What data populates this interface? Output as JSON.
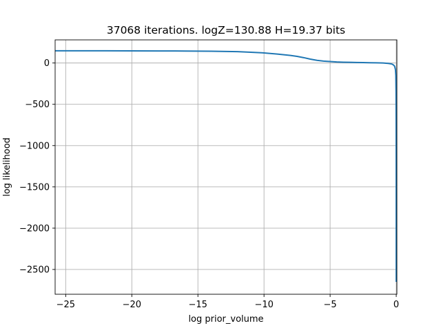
{
  "chart_data": {
    "type": "line",
    "title": "37068 iterations. logZ=130.88 H=19.37 bits",
    "xlabel": "log prior_volume",
    "ylabel": "log likelihood",
    "xlim": [
      -25.8,
      0.05
    ],
    "ylim": [
      -2800,
      280
    ],
    "grid": true,
    "xticks": [
      -25,
      -20,
      -15,
      -10,
      -5,
      0
    ],
    "xtick_labels": [
      "−25",
      "−20",
      "−15",
      "−10",
      "−5",
      "0"
    ],
    "yticks": [
      0,
      -500,
      -1000,
      -1500,
      -2000,
      -2500
    ],
    "ytick_labels": [
      "0",
      "−500",
      "−1000",
      "−1500",
      "−2000",
      "−2500"
    ],
    "series": [
      {
        "color": "#1f77b4",
        "x": [
          -25.8,
          -22,
          -20,
          -18,
          -16,
          -14,
          -12,
          -11,
          -10,
          -9,
          -8,
          -7.5,
          -7,
          -6.5,
          -6,
          -5.5,
          -5,
          -4.5,
          -4,
          -3.5,
          -3,
          -2.5,
          -2,
          -1.5,
          -1,
          -0.6,
          -0.4,
          -0.3,
          -0.2,
          -0.12,
          -0.06,
          -0.03,
          -0.015,
          -0.008,
          -0.003,
          -0.001,
          0
        ],
        "y": [
          148,
          148,
          147,
          146,
          145,
          143,
          137,
          130,
          122,
          108,
          92,
          80,
          65,
          47,
          32,
          23,
          18,
          13,
          10,
          8,
          6,
          5,
          3,
          2,
          0,
          -5,
          -10,
          -15,
          -25,
          -40,
          -80,
          -150,
          -350,
          -700,
          -1200,
          -1900,
          -2650
        ]
      }
    ]
  }
}
